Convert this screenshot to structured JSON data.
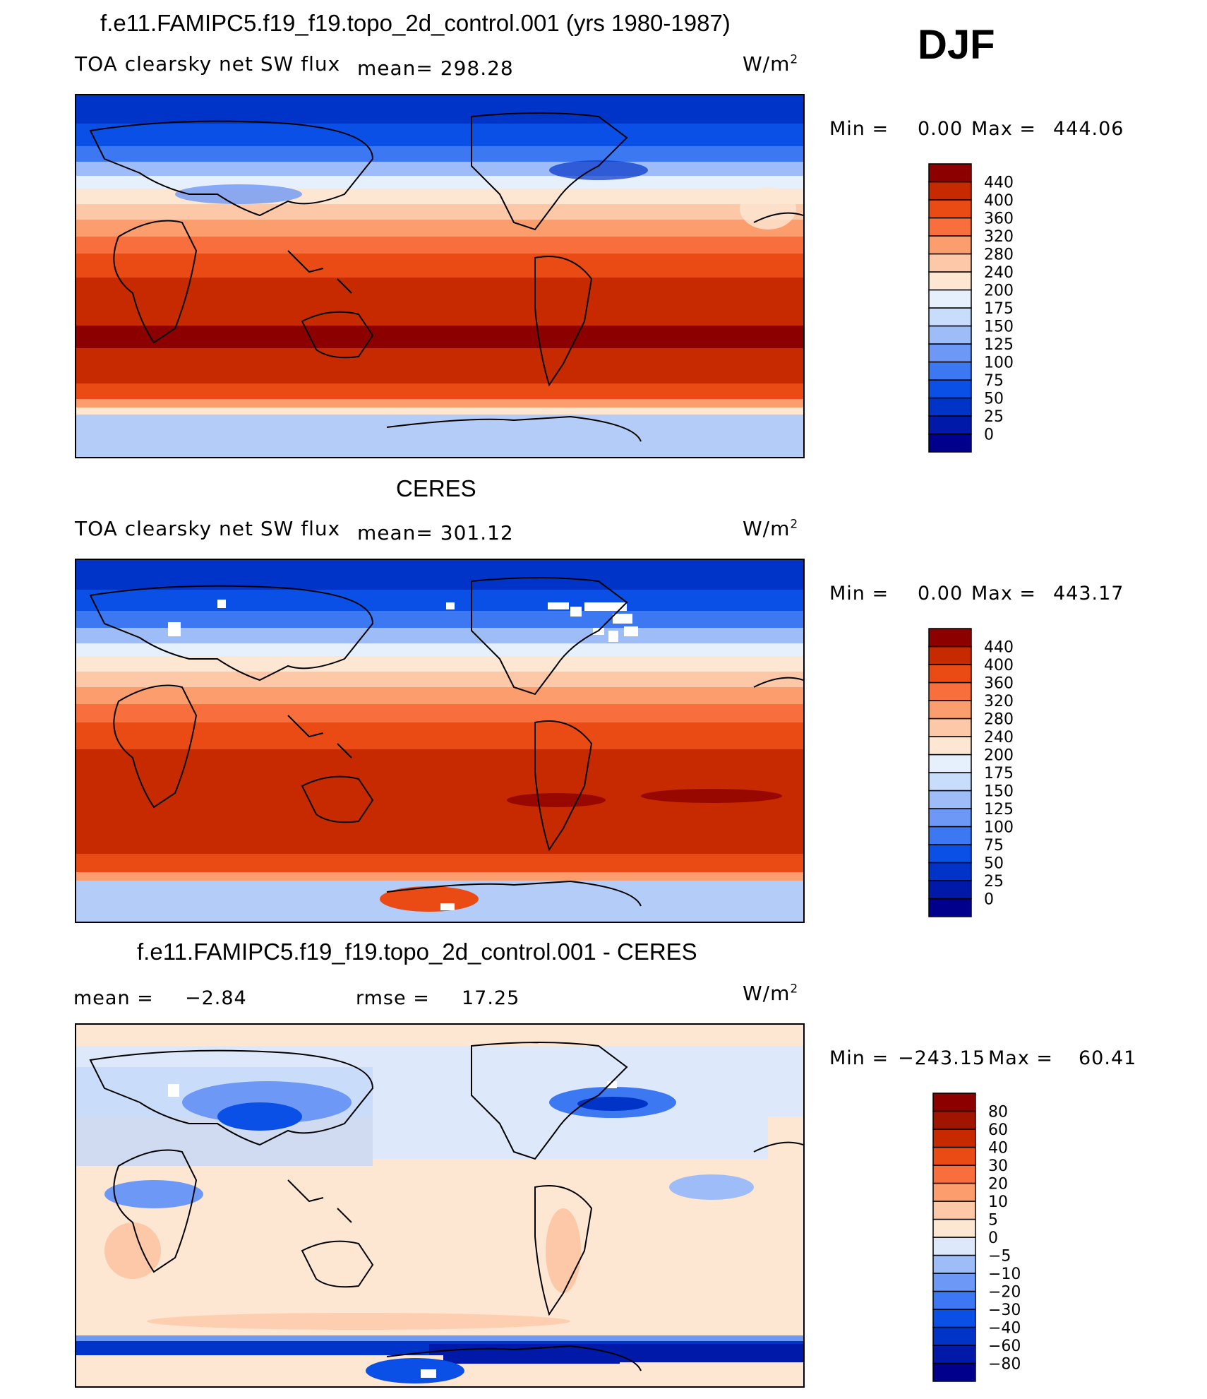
{
  "season": "DJF",
  "units_label": "W/m",
  "units_sup": "2",
  "panels": [
    {
      "title": "f.e11.FAMIPC5.f19_f19.topo_2d_control.001 (yrs 1980-1987)",
      "subtitle": "TOA clearsky net SW flux",
      "mean_text": "mean=  298.28",
      "min_label": "Min =",
      "min_value": "0.00",
      "max_label": "Max =",
      "max_value": "444.06"
    },
    {
      "title": "CERES",
      "subtitle": "TOA clearsky net SW flux",
      "mean_text": "mean=  301.12",
      "min_label": "Min =",
      "min_value": "0.00",
      "max_label": "Max =",
      "max_value": "443.17"
    },
    {
      "title": "f.e11.FAMIPC5.f19_f19.topo_2d_control.001 - CERES",
      "mean_label": "mean =",
      "mean_value": "−2.84",
      "rmse_label": "rmse =",
      "rmse_value": "17.25",
      "min_label": "Min =",
      "min_value": "−243.15",
      "max_label": "Max =",
      "max_value": "60.41"
    }
  ],
  "chart_data": [
    {
      "type": "heatmap",
      "title": "f.e11.FAMIPC5.f19_f19.topo_2d_control.001 (yrs 1980-1987)",
      "variable": "TOA clearsky net SW flux",
      "units": "W/m2",
      "mean": 298.28,
      "min": 0.0,
      "max": 444.06,
      "levels": [
        "0",
        "25",
        "50",
        "75",
        "100",
        "125",
        "150",
        "175",
        "200",
        "240",
        "280",
        "320",
        "360",
        "400",
        "440"
      ],
      "colors": [
        "#00008c",
        "#0019a8",
        "#0033c8",
        "#0a50e6",
        "#3c78f2",
        "#6e98f5",
        "#9ebcf8",
        "#c8dcfb",
        "#e6effc",
        "#fde6d2",
        "#fdc8a8",
        "#fc9d6e",
        "#f86e3c",
        "#ea4a14",
        "#c82a00",
        "#8c0000"
      ]
    },
    {
      "type": "heatmap",
      "title": "CERES",
      "variable": "TOA clearsky net SW flux",
      "units": "W/m2",
      "mean": 301.12,
      "min": 0.0,
      "max": 443.17,
      "levels": [
        "0",
        "25",
        "50",
        "75",
        "100",
        "125",
        "150",
        "175",
        "200",
        "240",
        "280",
        "320",
        "360",
        "400",
        "440"
      ],
      "colors": [
        "#00008c",
        "#0019a8",
        "#0033c8",
        "#0a50e6",
        "#3c78f2",
        "#6e98f5",
        "#9ebcf8",
        "#c8dcfb",
        "#e6effc",
        "#fde6d2",
        "#fdc8a8",
        "#fc9d6e",
        "#f86e3c",
        "#ea4a14",
        "#c82a00",
        "#8c0000"
      ]
    },
    {
      "type": "heatmap",
      "title": "f.e11.FAMIPC5.f19_f19.topo_2d_control.001 - CERES",
      "units": "W/m2",
      "mean": -2.84,
      "rmse": 17.25,
      "min": -243.15,
      "max": 60.41,
      "levels": [
        "−80",
        "−60",
        "−40",
        "−30",
        "−20",
        "−10",
        "−5",
        "0",
        "5",
        "10",
        "20",
        "30",
        "40",
        "60",
        "80"
      ],
      "colors": [
        "#00008c",
        "#0019a8",
        "#0033c8",
        "#0a50e6",
        "#3c78f2",
        "#6e98f5",
        "#9ebcf8",
        "#dde9fb",
        "#fde6d2",
        "#fdc8a8",
        "#fc9d6e",
        "#f86e3c",
        "#ea4a14",
        "#c82a00",
        "#a01400",
        "#8c0000"
      ]
    }
  ]
}
